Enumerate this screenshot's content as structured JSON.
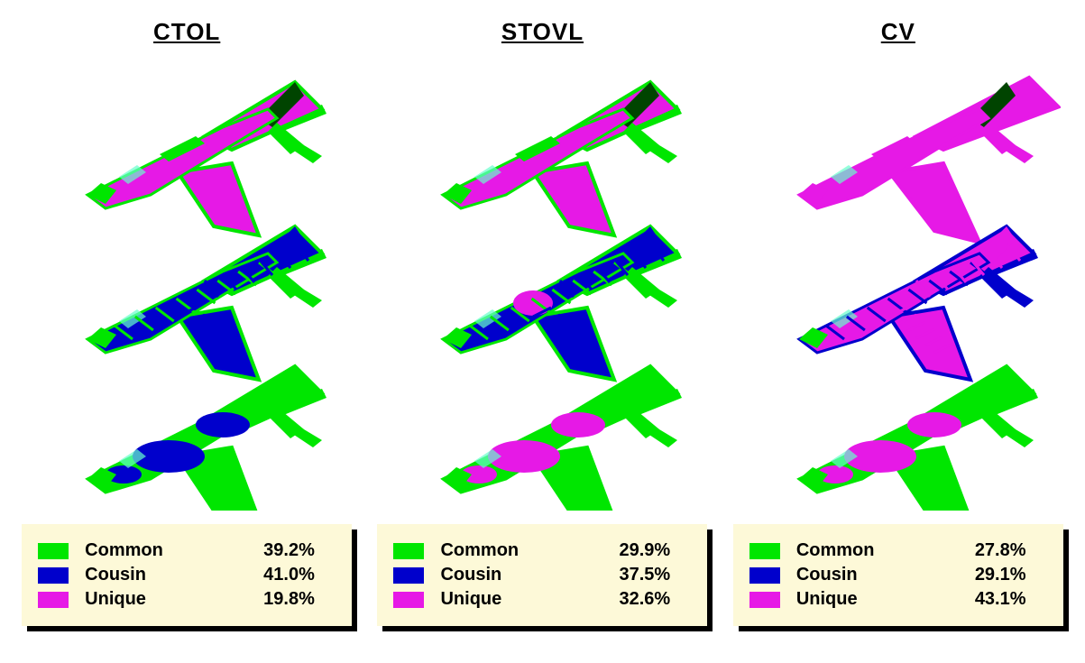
{
  "variants": [
    {
      "title": "CTOL",
      "legend": [
        {
          "label": "Common",
          "value": "39.2%",
          "color": "#00e600"
        },
        {
          "label": "Cousin",
          "value": "41.0%",
          "color": "#0000cc"
        },
        {
          "label": "Unique",
          "value": "19.8%",
          "color": "#e619e6"
        }
      ],
      "diagram": {
        "colors": {
          "common": "#00e600",
          "cousin": "#0000cc",
          "unique": "#e619e6",
          "dark": "#004400"
        },
        "outer_surface_primary": "unique",
        "wing_edge": "common",
        "frame_primary": "cousin",
        "frame_secondary": "common",
        "underside_primary": "common",
        "underside_secondary": "cousin"
      }
    },
    {
      "title": "STOVL",
      "legend": [
        {
          "label": "Common",
          "value": "29.9%",
          "color": "#00e600"
        },
        {
          "label": "Cousin",
          "value": "37.5%",
          "color": "#0000cc"
        },
        {
          "label": "Unique",
          "value": "32.6%",
          "color": "#e619e6"
        }
      ],
      "diagram": {
        "colors": {
          "common": "#00e600",
          "cousin": "#0000cc",
          "unique": "#e619e6",
          "dark": "#004400"
        },
        "outer_surface_primary": "unique",
        "wing_edge": "common",
        "frame_primary": "cousin",
        "frame_secondary": "common",
        "frame_center": "unique",
        "underside_primary": "common",
        "underside_secondary": "unique"
      }
    },
    {
      "title": "CV",
      "legend": [
        {
          "label": "Common",
          "value": "27.8%",
          "color": "#00e600"
        },
        {
          "label": "Cousin",
          "value": "29.1%",
          "color": "#0000cc"
        },
        {
          "label": "Unique",
          "value": "43.1%",
          "color": "#e619e6"
        }
      ],
      "diagram": {
        "colors": {
          "common": "#00e600",
          "cousin": "#0000cc",
          "unique": "#e619e6",
          "dark": "#004400"
        },
        "outer_surface_primary": "unique",
        "wing_edge": "unique",
        "wing_large": true,
        "frame_primary": "unique",
        "frame_secondary": "cousin",
        "frame_nose": "common",
        "underside_primary": "common",
        "underside_secondary": "unique"
      }
    }
  ],
  "legend_box_bg": "#fdf9d8",
  "shadow_color": "#000000",
  "title_fontsize": 26,
  "legend_fontsize": 20
}
